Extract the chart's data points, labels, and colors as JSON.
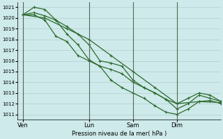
{
  "xlabel": "Pression niveau de la mer( hPa )",
  "ylim": [
    1010.5,
    1021.5
  ],
  "yticks": [
    1011,
    1012,
    1013,
    1014,
    1015,
    1016,
    1017,
    1018,
    1019,
    1020,
    1021
  ],
  "background_color": "#ceeaea",
  "grid_color": "#b0cccc",
  "line_color": "#2d6a2d",
  "vline_color": "#556655",
  "xtick_labels": [
    "Ven",
    "Lun",
    "Sam",
    "Dim"
  ],
  "xtick_positions": [
    0,
    36,
    60,
    84
  ],
  "vline_positions": [
    0,
    36,
    60,
    84
  ],
  "xlim": [
    -3,
    108
  ],
  "series1_x": [
    0,
    6,
    12,
    18,
    24,
    30,
    36,
    42,
    48,
    54,
    60,
    66,
    72,
    78,
    84,
    90,
    96,
    102,
    108
  ],
  "series1_y": [
    1020.3,
    1020.5,
    1020.2,
    1019.8,
    1018.5,
    1017.5,
    1016.1,
    1015.5,
    1014.2,
    1013.5,
    1013.0,
    1012.5,
    1011.8,
    1011.2,
    1011.0,
    1011.5,
    1012.2,
    1012.3,
    1012.0
  ],
  "series2_x": [
    0,
    6,
    12,
    18,
    24,
    30,
    36,
    42,
    48,
    54,
    60,
    66,
    72,
    78,
    84,
    90,
    96,
    102,
    108
  ],
  "series2_y": [
    1020.3,
    1021.0,
    1020.8,
    1019.8,
    1019.2,
    1018.5,
    1017.5,
    1016.0,
    1015.8,
    1015.5,
    1014.2,
    1013.5,
    1013.0,
    1012.4,
    1011.5,
    1012.0,
    1012.8,
    1012.5,
    1012.2
  ],
  "series3_x": [
    0,
    6,
    12,
    18,
    24,
    30,
    36,
    42,
    48,
    54,
    60,
    66,
    72,
    78,
    84,
    90,
    96,
    102,
    108
  ],
  "series3_y": [
    1020.3,
    1020.3,
    1019.8,
    1018.3,
    1017.8,
    1016.5,
    1016.0,
    1015.5,
    1015.2,
    1014.8,
    1014.0,
    1013.5,
    1013.0,
    1012.4,
    1012.0,
    1012.5,
    1013.0,
    1012.8,
    1012.2
  ],
  "series4_x": [
    0,
    12,
    24,
    36,
    48,
    60,
    72,
    84,
    96,
    108
  ],
  "series4_y": [
    1020.3,
    1020.0,
    1019.0,
    1018.0,
    1016.5,
    1015.0,
    1013.5,
    1012.0,
    1012.2,
    1012.1
  ],
  "marker": "+",
  "marker_size": 3,
  "linewidth": 0.9,
  "figsize": [
    3.2,
    2.0
  ],
  "dpi": 100
}
